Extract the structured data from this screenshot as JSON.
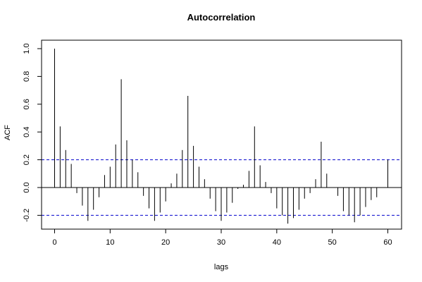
{
  "chart_data": {
    "type": "bar",
    "title": "Autocorrelation",
    "xlabel": "lags",
    "ylabel": "ACF",
    "xlim": [
      -2,
      62
    ],
    "ylim": [
      -0.3,
      1.05
    ],
    "x_ticks": [
      0,
      10,
      20,
      30,
      40,
      50,
      60
    ],
    "y_ticks": [
      -0.2,
      0.0,
      0.2,
      0.4,
      0.6,
      0.8,
      1.0
    ],
    "y_tick_labels": [
      "-0.2",
      "0.0",
      "0.2",
      "0.4",
      "0.6",
      "0.8",
      "1.0"
    ],
    "confidence_bounds": [
      0.2,
      -0.2
    ],
    "colors": {
      "bars": "#000000",
      "confidence": "#0000cc",
      "zero": "#000000"
    },
    "lags": [
      0,
      1,
      2,
      3,
      4,
      5,
      6,
      7,
      8,
      9,
      10,
      11,
      12,
      13,
      14,
      15,
      16,
      17,
      18,
      19,
      20,
      21,
      22,
      23,
      24,
      25,
      26,
      27,
      28,
      29,
      30,
      31,
      32,
      33,
      34,
      35,
      36,
      37,
      38,
      39,
      40,
      41,
      42,
      43,
      44,
      45,
      46,
      47,
      48,
      49,
      50,
      51,
      52,
      53,
      54,
      55,
      56,
      57,
      58,
      59,
      60
    ],
    "values": [
      1.0,
      0.44,
      0.27,
      0.17,
      -0.04,
      -0.13,
      -0.24,
      -0.16,
      -0.07,
      0.09,
      0.15,
      0.31,
      0.78,
      0.34,
      0.2,
      0.11,
      -0.06,
      -0.15,
      -0.24,
      -0.18,
      -0.1,
      0.03,
      0.1,
      0.27,
      0.66,
      0.3,
      0.15,
      0.06,
      -0.08,
      -0.17,
      -0.24,
      -0.18,
      -0.11,
      -0.01,
      0.02,
      0.12,
      0.44,
      0.16,
      0.04,
      -0.04,
      -0.15,
      -0.2,
      -0.26,
      -0.22,
      -0.16,
      -0.08,
      -0.04,
      0.06,
      0.33,
      0.1,
      0.0,
      -0.06,
      -0.17,
      -0.2,
      -0.25,
      -0.2,
      -0.14,
      -0.09,
      -0.07,
      0.0,
      0.2
    ]
  }
}
